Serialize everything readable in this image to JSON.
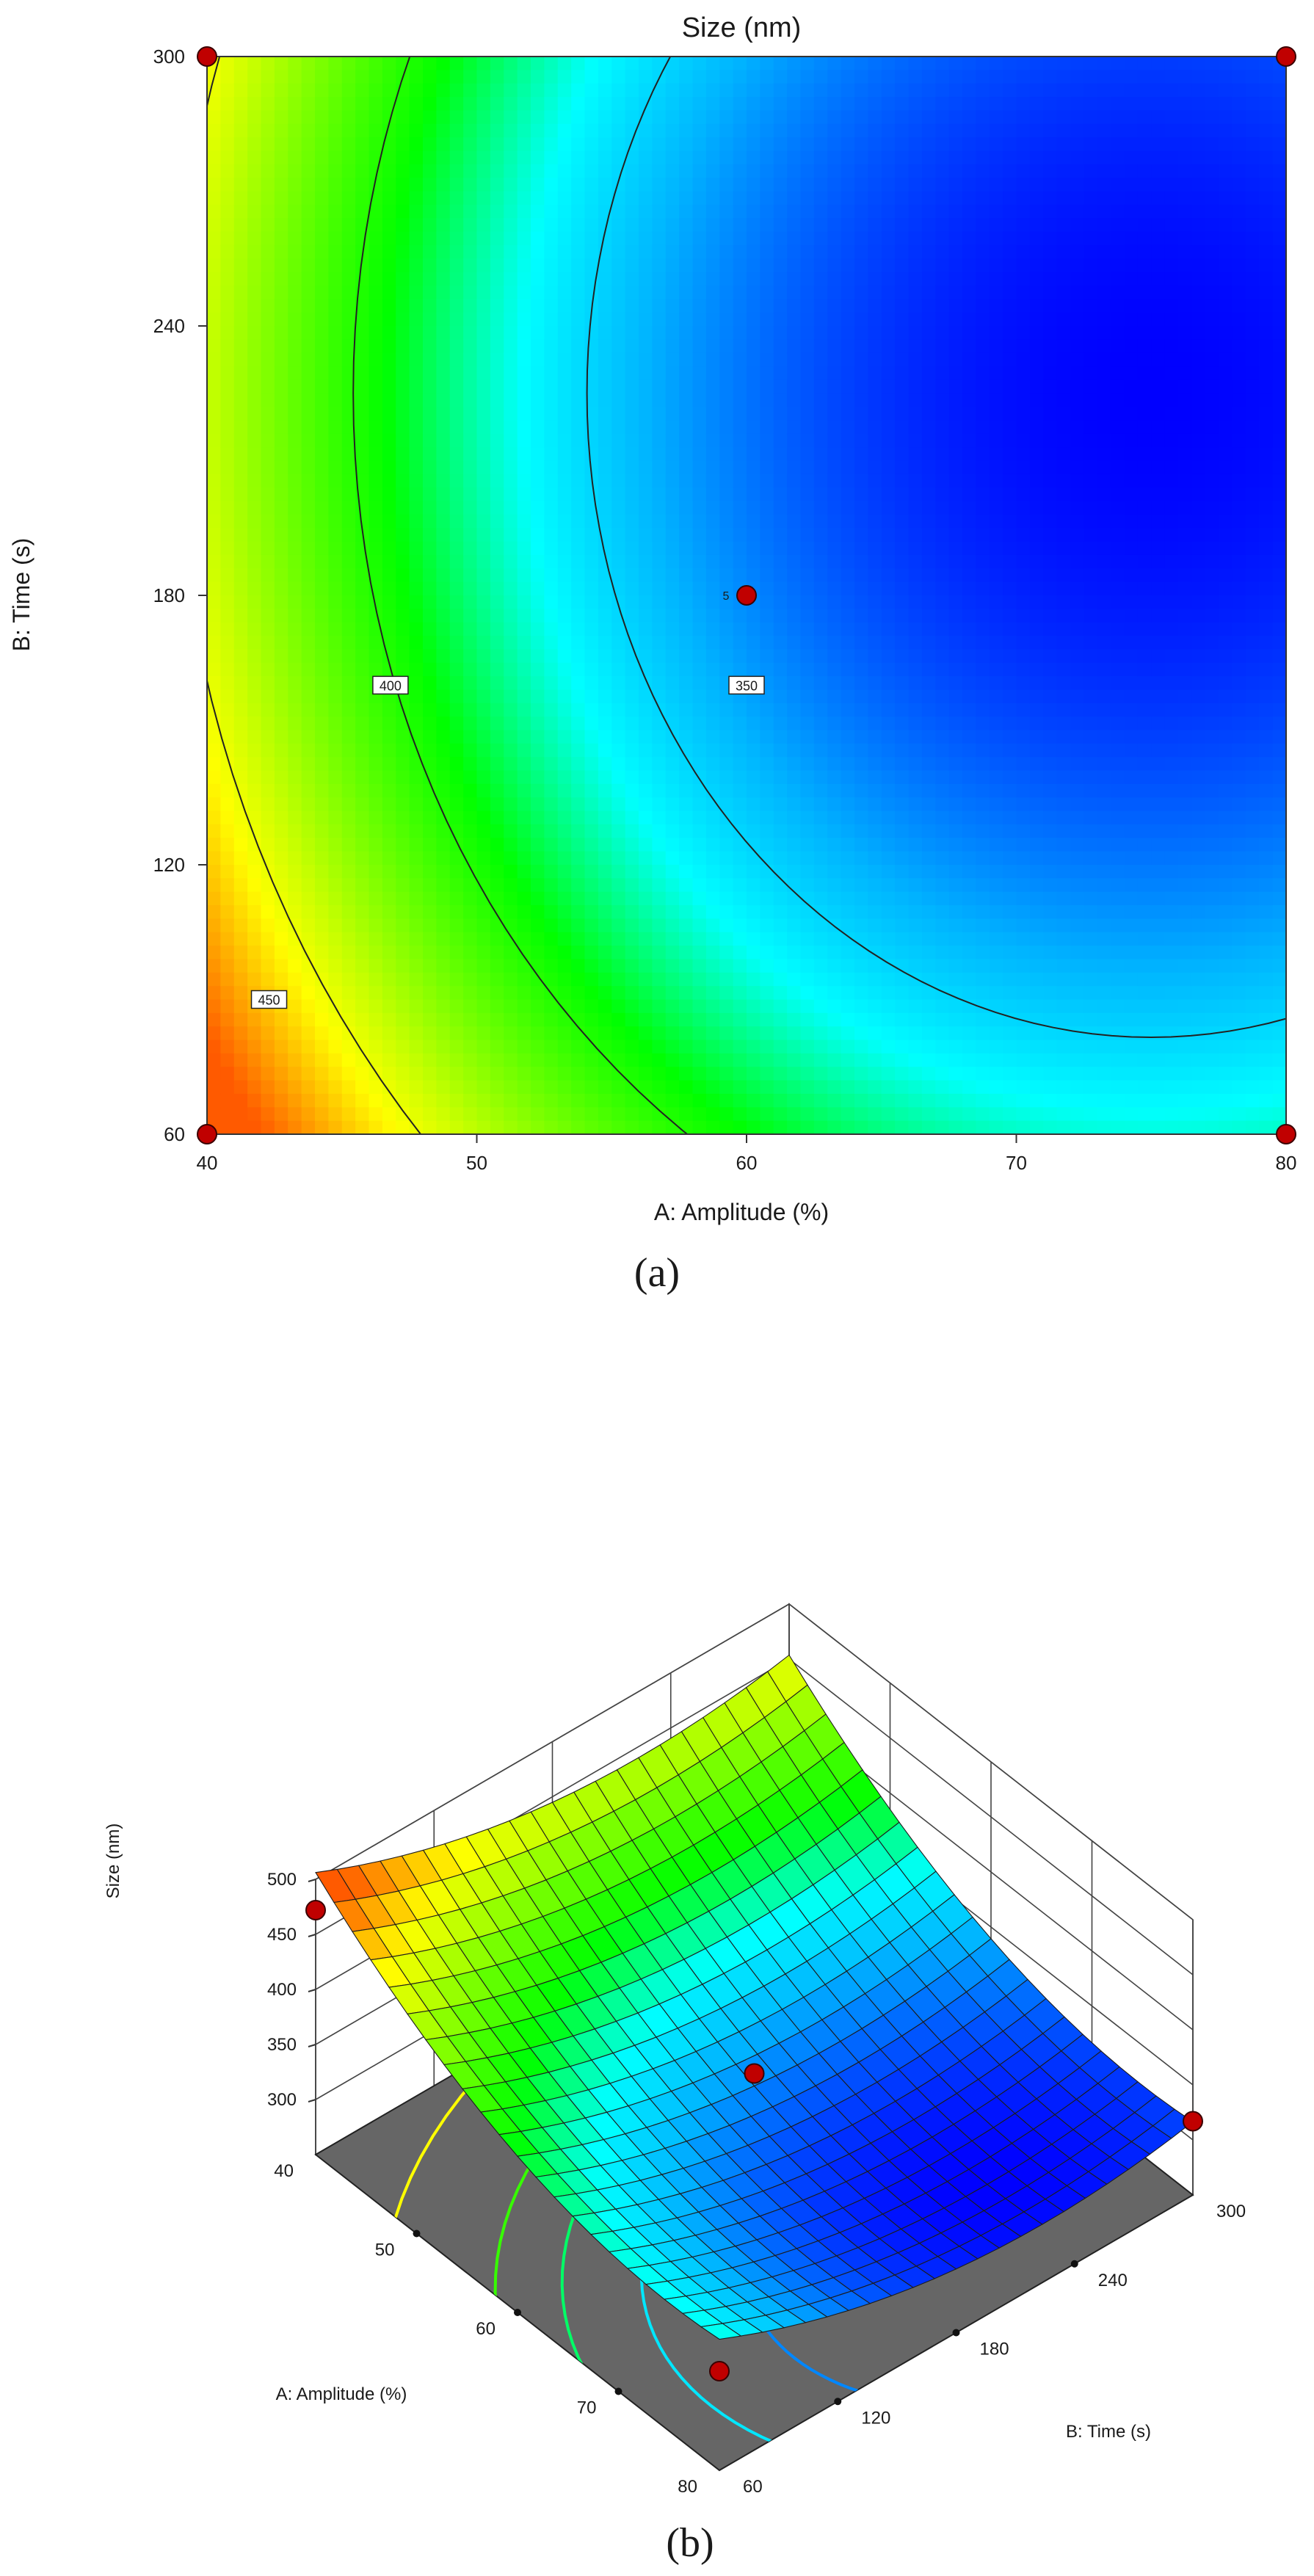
{
  "chart_data": [
    {
      "type": "heatmap",
      "panel_label": "(a)",
      "title": "Size (nm)",
      "xlabel": "A: Amplitude (%)",
      "ylabel": "B: Time (s)",
      "xlim": [
        40,
        80
      ],
      "ylim": [
        60,
        300
      ],
      "x_ticks": [
        "40",
        "50",
        "60",
        "70",
        "80"
      ],
      "y_ticks": [
        "60",
        "120",
        "180",
        "240",
        "300"
      ],
      "contours": [
        {
          "level": 350,
          "label": "350",
          "label_at": {
            "x": 60,
            "y": 160
          }
        },
        {
          "level": 400,
          "label": "400",
          "label_at": {
            "x": 46.8,
            "y": 160
          }
        },
        {
          "level": 450,
          "label": "450",
          "label_at": {
            "x": 42.3,
            "y": 90
          }
        }
      ],
      "design_points": [
        {
          "x": 40,
          "y": 300
        },
        {
          "x": 80,
          "y": 300
        },
        {
          "x": 40,
          "y": 60
        },
        {
          "x": 80,
          "y": 60
        },
        {
          "x": 60,
          "y": 180,
          "label": "5"
        }
      ],
      "color_scale": [
        "#0000ff",
        "#00ffff",
        "#00ff00",
        "#ffff00",
        "#ff7f00"
      ],
      "grid": false
    },
    {
      "type": "surface",
      "panel_label": "(b)",
      "zlabel": "Size (nm)",
      "xlabel": "A: Amplitude (%)",
      "ylabel": "B: Time (s)",
      "xlim": [
        40,
        80
      ],
      "ylim": [
        60,
        300
      ],
      "zlim": [
        250,
        500
      ],
      "x_ticks": [
        "40",
        "50",
        "60",
        "70",
        "80"
      ],
      "y_ticks": [
        "60",
        "120",
        "180",
        "240",
        "300"
      ],
      "z_ticks": [
        "300",
        "350",
        "400",
        "450",
        "500"
      ],
      "design_points": [
        {
          "x": 40,
          "y": 60,
          "z": 472
        },
        {
          "x": 80,
          "y": 300,
          "z": 317
        },
        {
          "x": 80,
          "y": 60,
          "z": 340
        },
        {
          "x": 60,
          "y": 180,
          "z": 342
        }
      ],
      "floor_contours": [
        450,
        400,
        375,
        350,
        325
      ],
      "grid": true
    }
  ]
}
